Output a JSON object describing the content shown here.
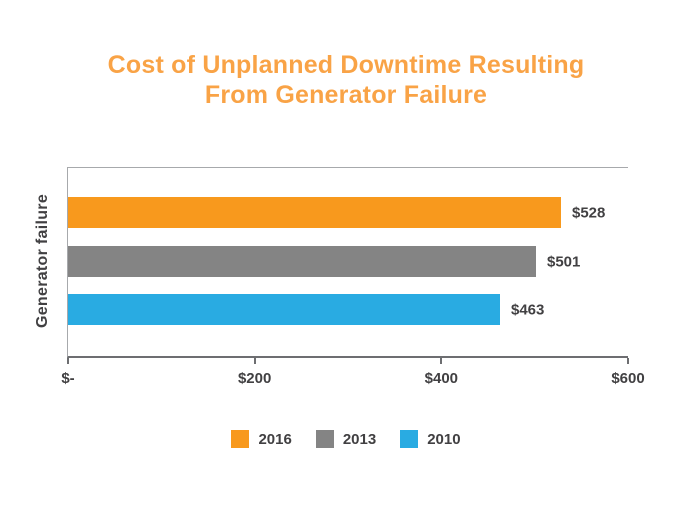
{
  "title": {
    "line1": "Cost of Unplanned Downtime Resulting",
    "line2": "From Generator Failure",
    "color": "#F9A346"
  },
  "chart_data": {
    "type": "bar",
    "orientation": "horizontal",
    "title": "Cost of Unplanned Downtime Resulting From Generator Failure",
    "category_axis_label": "Generator failure",
    "categories": [
      "Generator failure"
    ],
    "series": [
      {
        "name": "2016",
        "value": 528,
        "value_label": "$528",
        "color": "#F8991D"
      },
      {
        "name": "2013",
        "value": 501,
        "value_label": "$501",
        "color": "#848484"
      },
      {
        "name": "2010",
        "value": 463,
        "value_label": "$463",
        "color": "#29ABE2"
      }
    ],
    "xlim": [
      0,
      600
    ],
    "x_ticks": [
      {
        "value": 0,
        "label": "$-"
      },
      {
        "value": 200,
        "label": "$200"
      },
      {
        "value": 400,
        "label": "$400"
      },
      {
        "value": 600,
        "label": "$600"
      }
    ],
    "grid": false,
    "legend_position": "bottom",
    "legend": [
      "2016",
      "2013",
      "2010"
    ],
    "colors": {
      "text": "#414042",
      "plot_border": "#A7A9AC",
      "axis_line": "#6D6E71"
    }
  }
}
